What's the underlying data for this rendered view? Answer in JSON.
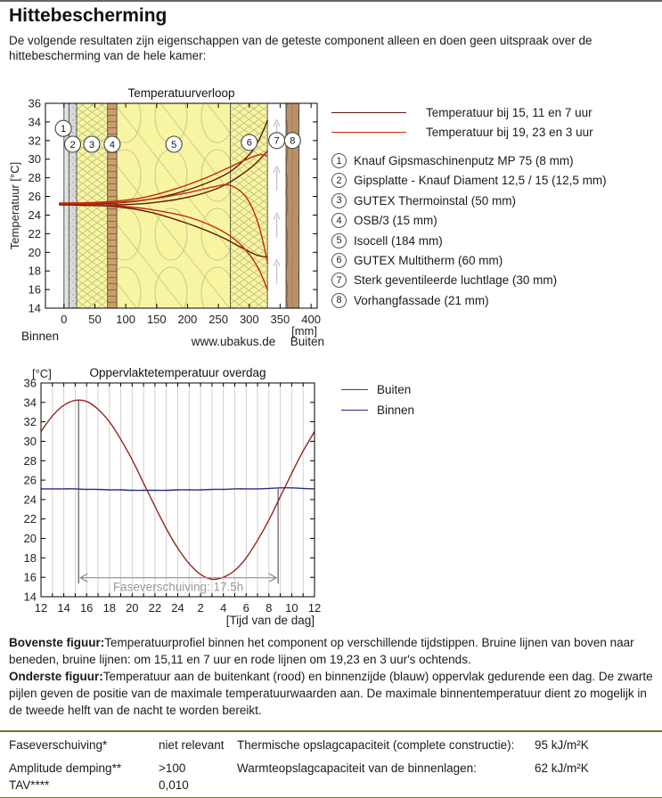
{
  "page": {
    "title": "Hittebescherming",
    "intro": "De volgende resultaten zijn eigenschappen van de geteste component alleen en doen geen uitspraak over de hittebescherming van de hele kamer:"
  },
  "top_legend": [
    {
      "label": "Temperatuur bij 15, 11 en 7 uur",
      "color": "#5c1c10"
    },
    {
      "label": "Temperatuur bij 19, 23 en 3 uur",
      "color": "#c92708"
    }
  ],
  "materials": [
    {
      "n": "1",
      "label": "Knauf Gipsmaschinenputz MP 75 (8 mm)"
    },
    {
      "n": "2",
      "label": "Gipsplatte - Knauf Diament 12,5 / 15 (12,5 mm)"
    },
    {
      "n": "3",
      "label": "GUTEX Thermoinstal (50 mm)"
    },
    {
      "n": "4",
      "label": "OSB/3 (15 mm)"
    },
    {
      "n": "5",
      "label": "Isocell (184 mm)"
    },
    {
      "n": "6",
      "label": "GUTEX Multitherm (60 mm)"
    },
    {
      "n": "7",
      "label": "Sterk geventileerde luchtlage (30 mm)"
    },
    {
      "n": "8",
      "label": "Vorhangfassade (21 mm)"
    }
  ],
  "chart_data": [
    {
      "type": "line",
      "title": "Temperatuurverloop",
      "xlabel": "[mm]",
      "ylabel": "Temperatuur [°C]",
      "xlim": [
        -30,
        410
      ],
      "ylim": [
        14,
        36
      ],
      "x_ticks": [
        0,
        50,
        100,
        150,
        200,
        250,
        300,
        350,
        400
      ],
      "y_tick_step": 2,
      "annotations": {
        "left": "Binnen",
        "right": "Buiten",
        "watermark": "www.ubakus.de"
      },
      "layers": [
        {
          "n": 1,
          "name": "Knauf Gipsmaschinenputz MP 75",
          "thickness_mm": 8,
          "fill": "#e3e3e3",
          "pattern": "plain"
        },
        {
          "n": 2,
          "name": "Gipsplatte - Knauf Diament 12,5 / 15",
          "thickness_mm": 12.5,
          "fill": "#d9d9d9",
          "pattern": "speckle"
        },
        {
          "n": 3,
          "name": "GUTEX Thermoinstal",
          "thickness_mm": 50,
          "fill": "#f8f5a2",
          "pattern": "fiber"
        },
        {
          "n": 4,
          "name": "OSB/3",
          "thickness_mm": 15,
          "fill": "#cb9e6c",
          "pattern": "osb"
        },
        {
          "n": 5,
          "name": "Isocell",
          "thickness_mm": 184,
          "fill": "#f8f5a2",
          "pattern": "cellulose"
        },
        {
          "n": 6,
          "name": "GUTEX Multitherm",
          "thickness_mm": 60,
          "fill": "#f8f5a2",
          "pattern": "fiber"
        },
        {
          "n": 7,
          "name": "Sterk geventileerde luchtlage",
          "thickness_mm": 30,
          "fill": "#ffffff",
          "pattern": "air"
        },
        {
          "n": 8,
          "name": "Vorhangfassade",
          "thickness_mm": 21,
          "fill": "#b9906a",
          "pattern": "wood"
        }
      ],
      "series": [
        {
          "name": "15 uur",
          "color": "#5c1c10",
          "points": [
            [
              -8,
              25.2
            ],
            [
              30,
              25.2
            ],
            [
              85,
              25.3
            ],
            [
              130,
              25.6
            ],
            [
              180,
              26.3
            ],
            [
              230,
              27.4
            ],
            [
              270,
              28.7
            ],
            [
              300,
              30.5
            ],
            [
              316,
              32.1
            ],
            [
              330,
              34.2
            ]
          ]
        },
        {
          "name": "11 uur",
          "color": "#5c1c10",
          "points": [
            [
              -8,
              25.15
            ],
            [
              30,
              25.12
            ],
            [
              85,
              25.1
            ],
            [
              140,
              25.3
            ],
            [
              200,
              25.9
            ],
            [
              250,
              26.9
            ],
            [
              282,
              28.1
            ],
            [
              308,
              29.4
            ],
            [
              330,
              30.9
            ]
          ]
        },
        {
          "name": "7 uur",
          "color": "#5c1c10",
          "points": [
            [
              -8,
              25.1
            ],
            [
              30,
              25.05
            ],
            [
              85,
              24.9
            ],
            [
              140,
              24.3
            ],
            [
              200,
              23.1
            ],
            [
              250,
              21.8
            ],
            [
              285,
              20.6
            ],
            [
              312,
              19.7
            ],
            [
              330,
              19.5
            ]
          ]
        },
        {
          "name": "19 uur",
          "color": "#c92708",
          "points": [
            [
              -8,
              25.3
            ],
            [
              30,
              25.32
            ],
            [
              85,
              25.5
            ],
            [
              130,
              25.9
            ],
            [
              180,
              26.8
            ],
            [
              230,
              28.0
            ],
            [
              270,
              29.2
            ],
            [
              300,
              30.1
            ],
            [
              318,
              30.5
            ],
            [
              330,
              30.3
            ]
          ]
        },
        {
          "name": "23 uur",
          "color": "#c92708",
          "points": [
            [
              -8,
              25.25
            ],
            [
              30,
              25.25
            ],
            [
              85,
              25.35
            ],
            [
              140,
              25.7
            ],
            [
              200,
              26.4
            ],
            [
              240,
              27.0
            ],
            [
              268,
              27.2
            ],
            [
              295,
              25.9
            ],
            [
              315,
              23.0
            ],
            [
              330,
              18.8
            ]
          ]
        },
        {
          "name": "3 uur",
          "color": "#c92708",
          "points": [
            [
              -8,
              25.2
            ],
            [
              30,
              25.18
            ],
            [
              85,
              25.0
            ],
            [
              140,
              24.6
            ],
            [
              200,
              23.8
            ],
            [
              250,
              22.5
            ],
            [
              285,
              20.9
            ],
            [
              312,
              18.6
            ],
            [
              330,
              15.9
            ]
          ]
        }
      ],
      "callouts": [
        {
          "n": "1",
          "x": -1,
          "t": 33.3
        },
        {
          "n": "2",
          "x": 14,
          "t": 31.6
        },
        {
          "n": "3",
          "x": 45,
          "t": 31.6
        },
        {
          "n": "4",
          "x": 78,
          "t": 31.6
        },
        {
          "n": "5",
          "x": 178,
          "t": 31.6
        },
        {
          "n": "6",
          "x": 300,
          "t": 31.8
        },
        {
          "n": "7",
          "x": 344.5,
          "t": 32.0
        },
        {
          "n": "8",
          "x": 370,
          "t": 32.0
        }
      ]
    },
    {
      "type": "line",
      "title": "Oppervlaktetemperatuur overdag",
      "xlabel": "[Tijd van de dag]",
      "ylabel": "[°C]",
      "xlim": [
        12,
        36
      ],
      "ylim": [
        14,
        36
      ],
      "x_tick_labels": [
        "12",
        "14",
        "16",
        "18",
        "20",
        "22",
        "24",
        "2",
        "4",
        "6",
        "8",
        "10",
        "12"
      ],
      "grid": "vertical hourly",
      "x": [
        12,
        13,
        14,
        15,
        16,
        17,
        18,
        19,
        20,
        21,
        22,
        23,
        24,
        25,
        26,
        27,
        28,
        29,
        30,
        31,
        32,
        33,
        34,
        35,
        36
      ],
      "series": [
        {
          "name": "Buiten",
          "color": "#96251d",
          "values": [
            31.0,
            32.6,
            33.7,
            34.2,
            34.1,
            33.3,
            32.0,
            30.2,
            28.1,
            25.7,
            23.3,
            21.0,
            19.0,
            17.4,
            16.3,
            15.8,
            16.0,
            16.7,
            18.0,
            19.8,
            21.9,
            24.3,
            26.7,
            29.0,
            31.0
          ]
        },
        {
          "name": "Binnen",
          "color": "#2a2a85",
          "values": [
            25.1,
            25.1,
            25.1,
            25.1,
            25.05,
            25.05,
            25.0,
            25.0,
            24.95,
            24.95,
            24.95,
            24.95,
            25.0,
            25.0,
            25.0,
            25.05,
            25.05,
            25.1,
            25.1,
            25.1,
            25.15,
            25.2,
            25.2,
            25.15,
            25.1
          ]
        }
      ],
      "phase_shift": {
        "label": "Faseverschuiving: 17.5h",
        "value_hours": 17.5,
        "outside_max_hour": 15.3,
        "inside_max_hour": 32.8
      }
    }
  ],
  "notes": [
    {
      "title": "Bovenste figuur:",
      "text": "Temperatuurprofiel binnen het component op verschillende tijdstippen. Bruine lijnen van boven naar beneden, bruine lijnen: om 15,11 en 7 uur en rode lijnen om 19,23 en 3 uur's ochtends."
    },
    {
      "title": "Onderste figuur:",
      "text": "Temperatuur aan de buitenkant (rood) en binnenzijde (blauw) oppervlak gedurende een dag. De zwarte pijlen geven de positie van de maximale temperatuurwaarden aan. De maximale binnentemperatuur dient zo mogelijk in de tweede helft van de nacht te worden bereikt."
    }
  ],
  "results_table": {
    "rows": [
      {
        "param": "Faseverschuiving*",
        "value": "niet relevant",
        "param2": "Thermische opslagcapaciteit (complete constructie):",
        "value2": "95 kJ/m²K"
      },
      {
        "param": "Amplitude demping**",
        "value": ">100",
        "param2": "Warmteopslagcapaciteit van de binnenlagen:",
        "value2": "62 kJ/m²K"
      },
      {
        "param": "TAV****",
        "value": "0,010",
        "param2": "",
        "value2": ""
      }
    ]
  }
}
